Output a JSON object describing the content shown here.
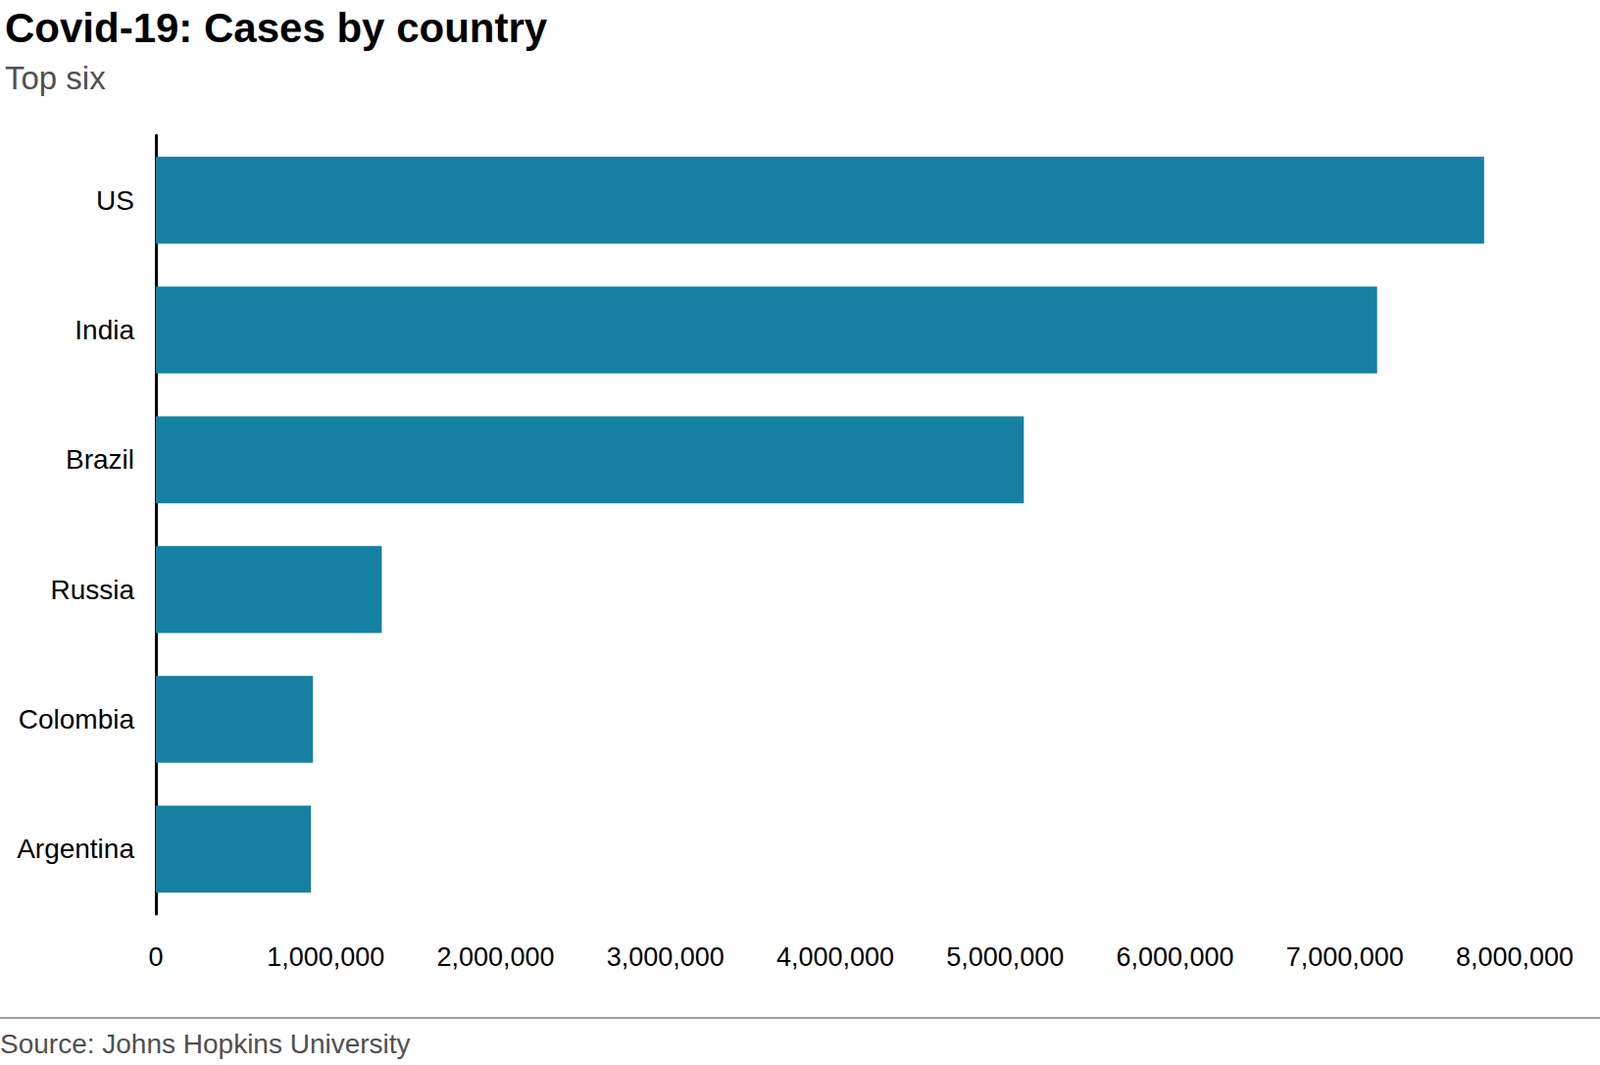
{
  "chart_data": {
    "type": "bar",
    "orientation": "horizontal",
    "title": "Covid-19: Cases by country",
    "subtitle": "Top six",
    "source": "Source: Johns Hopkins University",
    "categories": [
      "US",
      "India",
      "Brazil",
      "Russia",
      "Colombia",
      "Argentina"
    ],
    "values": [
      7820000,
      7190000,
      5110000,
      1330000,
      925000,
      913000
    ],
    "color": "#1580a2",
    "xlim": [
      0,
      8000000
    ],
    "xticks": [
      0,
      {
        "value": 1000000,
        "label": "1,000,000"
      },
      {
        "value": 2000000,
        "label": "2,000,000"
      },
      {
        "value": 3000000,
        "label": "3,000,000"
      },
      {
        "value": 4000000,
        "label": "4,000,000"
      },
      {
        "value": 5000000,
        "label": "5,000,000"
      },
      {
        "value": 6000000,
        "label": "6,000,000"
      },
      {
        "value": 7000000,
        "label": "7,000,000"
      },
      {
        "value": 8000000,
        "label": "8,000,000"
      }
    ],
    "grid": false
  }
}
